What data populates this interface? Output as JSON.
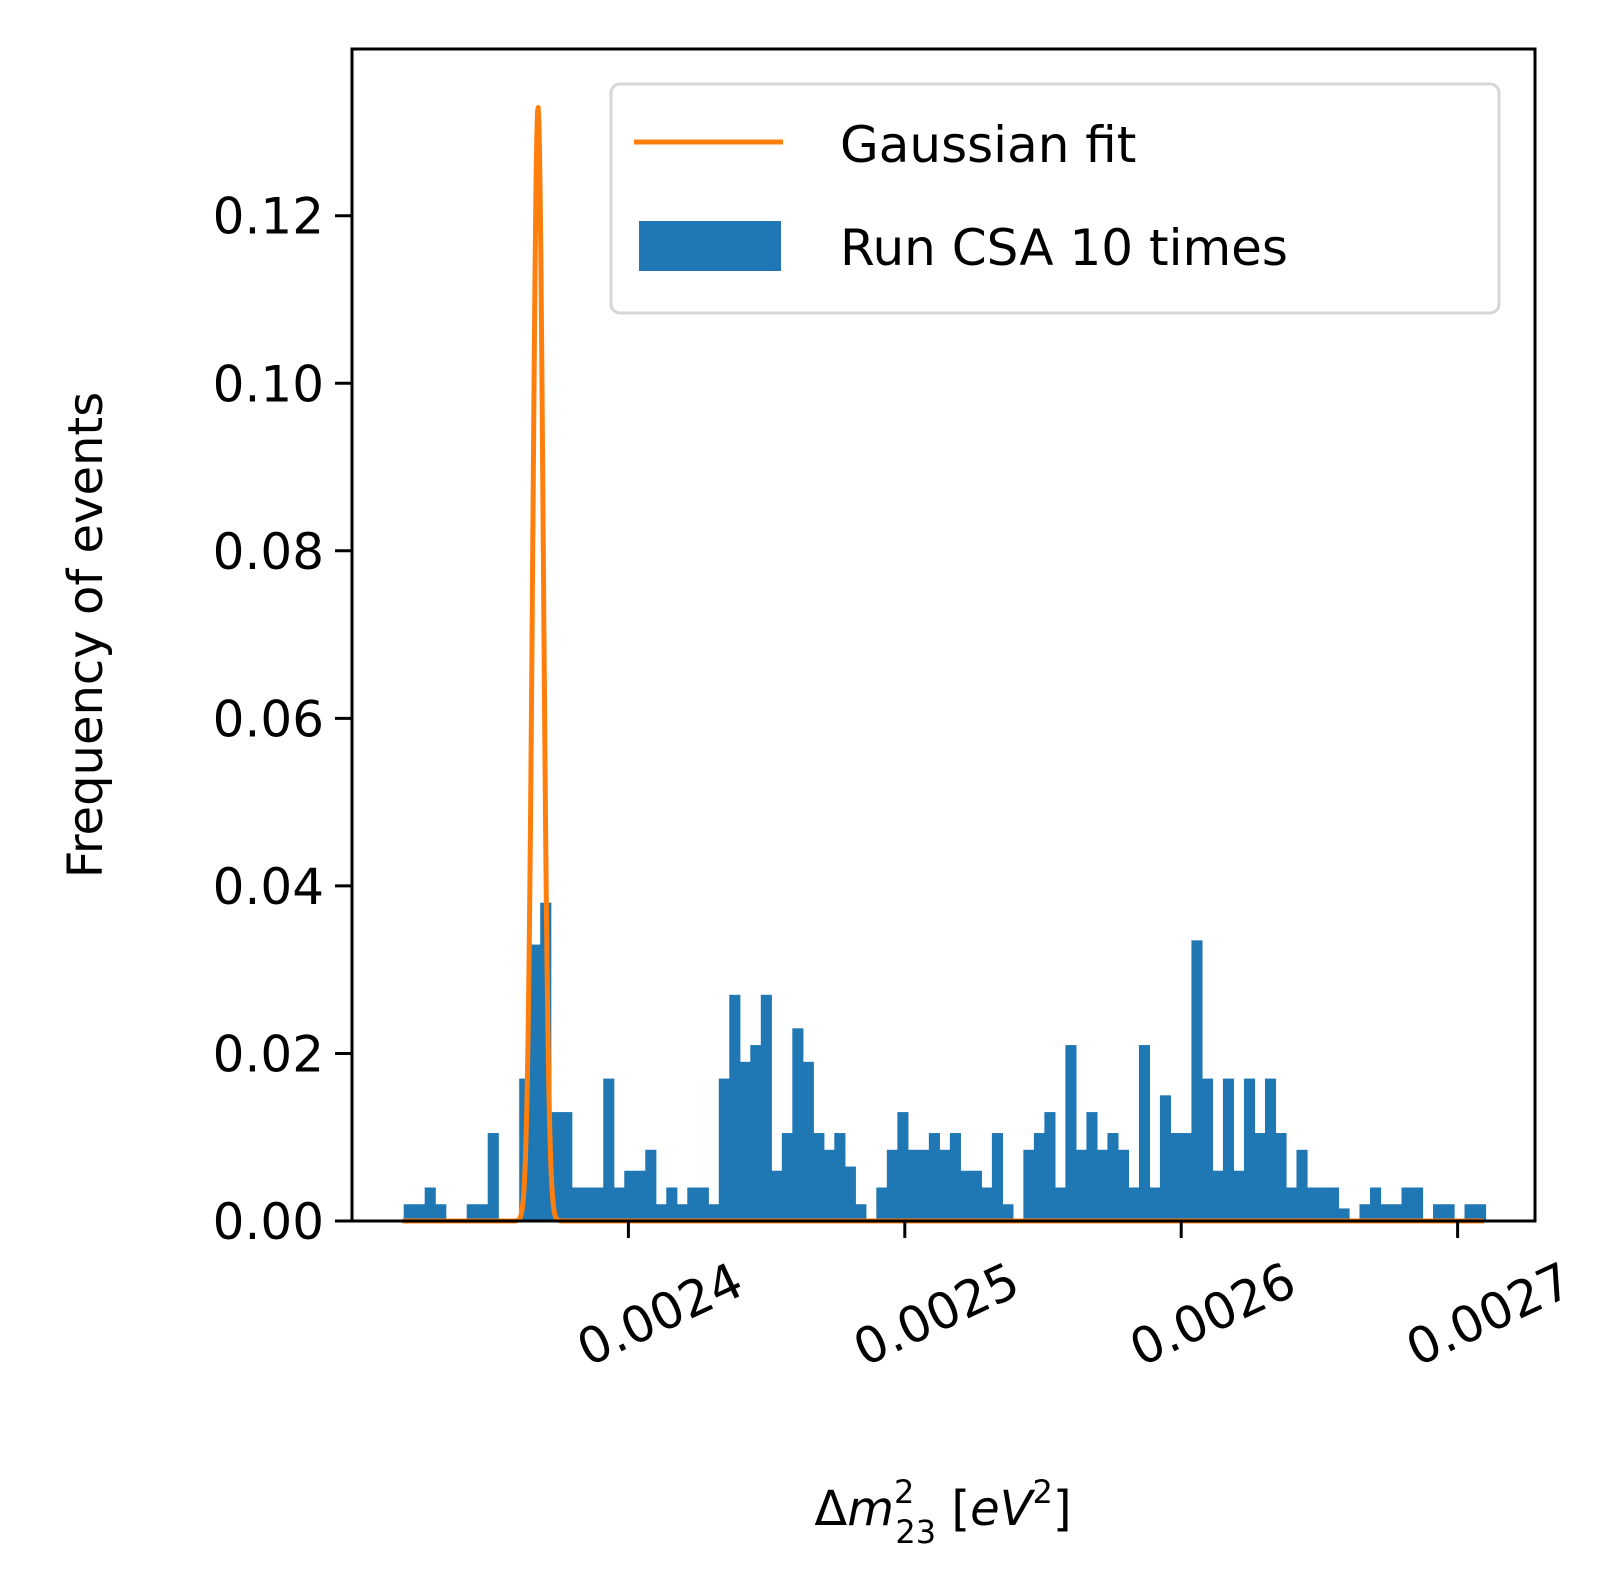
{
  "chart_data": {
    "type": "bar",
    "xlabel_parts": {
      "delta": "Δ",
      "var": "m",
      "sup": "2",
      "sub": "23",
      "unit_open": " [",
      "unit_var": "eV",
      "unit_sup": "2",
      "unit_close": "]"
    },
    "ylabel": "Frequency of events",
    "xlim": [
      0.0023,
      0.002728
    ],
    "ylim": [
      0,
      0.1399
    ],
    "x_ticks": [
      0.0024,
      0.0025,
      0.0026,
      0.0027
    ],
    "x_tick_labels": [
      "0.0024",
      "0.0025",
      "0.0026",
      "0.0027"
    ],
    "y_ticks": [
      0,
      0.02,
      0.04,
      0.06,
      0.08,
      0.1,
      0.12
    ],
    "y_tick_labels": [
      "0.00",
      "0.02",
      "0.04",
      "0.06",
      "0.08",
      "0.10",
      "0.12"
    ],
    "grid": false,
    "legend_position": "top-right",
    "colors": {
      "histogram": "#1f77b4",
      "fit": "#ff7f0e"
    },
    "series": [
      {
        "name": "Run CSA 10 times",
        "kind": "histogram",
        "bin_start": 0.0023187,
        "bin_width": 3.8e-06,
        "values": [
          0.002,
          0.002,
          0.004,
          0.002,
          0,
          0,
          0.002,
          0.002,
          0.0105,
          0,
          0,
          0.017,
          0.033,
          0.038,
          0.013,
          0.013,
          0.004,
          0.004,
          0.004,
          0.017,
          0.004,
          0.006,
          0.006,
          0.0085,
          0.002,
          0.004,
          0.002,
          0.004,
          0.004,
          0.002,
          0.017,
          0.027,
          0.019,
          0.021,
          0.027,
          0.006,
          0.0105,
          0.023,
          0.019,
          0.0105,
          0.0085,
          0.0105,
          0.0065,
          0.002,
          0,
          0.004,
          0.0085,
          0.013,
          0.0085,
          0.0085,
          0.0105,
          0.0085,
          0.0105,
          0.006,
          0.006,
          0.004,
          0.0105,
          0.002,
          0,
          0.0085,
          0.0105,
          0.013,
          0.004,
          0.021,
          0.0085,
          0.013,
          0.0085,
          0.0105,
          0.0085,
          0.004,
          0.021,
          0.004,
          0.015,
          0.0105,
          0.0105,
          0.0335,
          0.017,
          0.006,
          0.017,
          0.006,
          0.017,
          0.0105,
          0.017,
          0.0105,
          0.004,
          0.0085,
          0.004,
          0.004,
          0.004,
          0.0015,
          0,
          0.002,
          0.004,
          0.002,
          0.002,
          0.004,
          0.004,
          0,
          0.002,
          0.002,
          0,
          0.002,
          0.002
        ]
      },
      {
        "name": "Gaussian fit",
        "kind": "line",
        "x_start": 0.0023182,
        "x_end": 0.0027096,
        "mu": 0.0023673,
        "sigma": 1.9e-06,
        "amplitude": 0.133
      }
    ]
  }
}
